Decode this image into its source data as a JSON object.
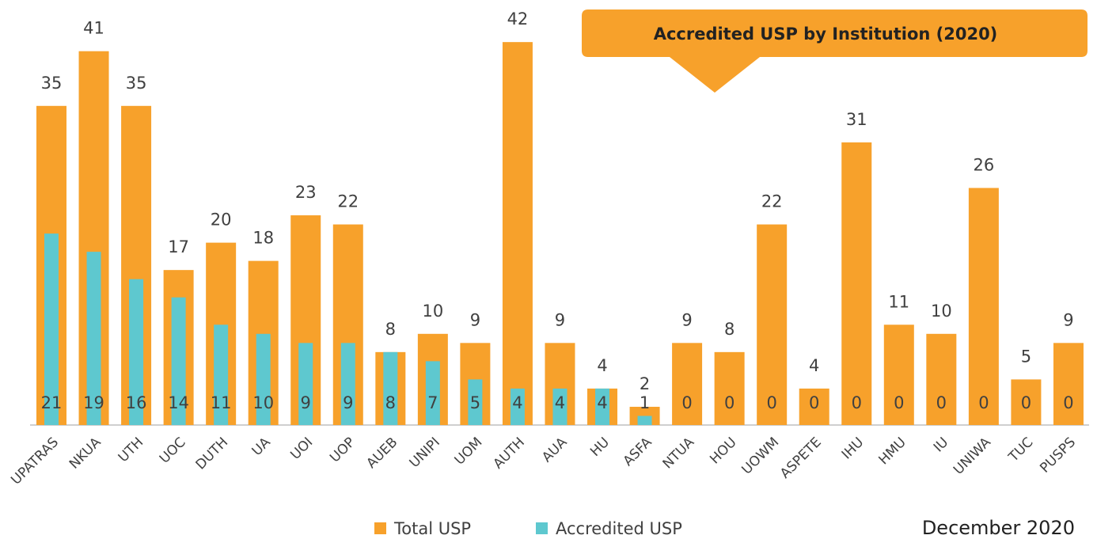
{
  "chart_data": {
    "type": "bar",
    "title": "Accredited USP by Institution (2020)",
    "annotation": "December 2020",
    "categories": [
      "UPATRAS",
      "NKUA",
      "UTH",
      "UOC",
      "DUTH",
      "UA",
      "UOI",
      "UOP",
      "AUEB",
      "UNIPI",
      "UOM",
      "AUTH",
      "AUA",
      "HU",
      "ASFA",
      "NTUA",
      "HOU",
      "UOWM",
      "ASPETE",
      "IHU",
      "HMU",
      "IU",
      "UNIWA",
      "TUC",
      "PUSPS"
    ],
    "series": [
      {
        "name": "Total USP",
        "color": "#f7a12b",
        "values": [
          35,
          41,
          35,
          17,
          20,
          18,
          23,
          22,
          8,
          10,
          9,
          42,
          9,
          4,
          2,
          9,
          8,
          22,
          4,
          31,
          11,
          10,
          26,
          5,
          9
        ]
      },
      {
        "name": "Accredited USP",
        "color": "#5ec8cf",
        "values": [
          21,
          19,
          16,
          14,
          11,
          10,
          9,
          9,
          8,
          7,
          5,
          4,
          4,
          4,
          1,
          0,
          0,
          0,
          0,
          0,
          0,
          0,
          0,
          0,
          0
        ]
      }
    ]
  }
}
